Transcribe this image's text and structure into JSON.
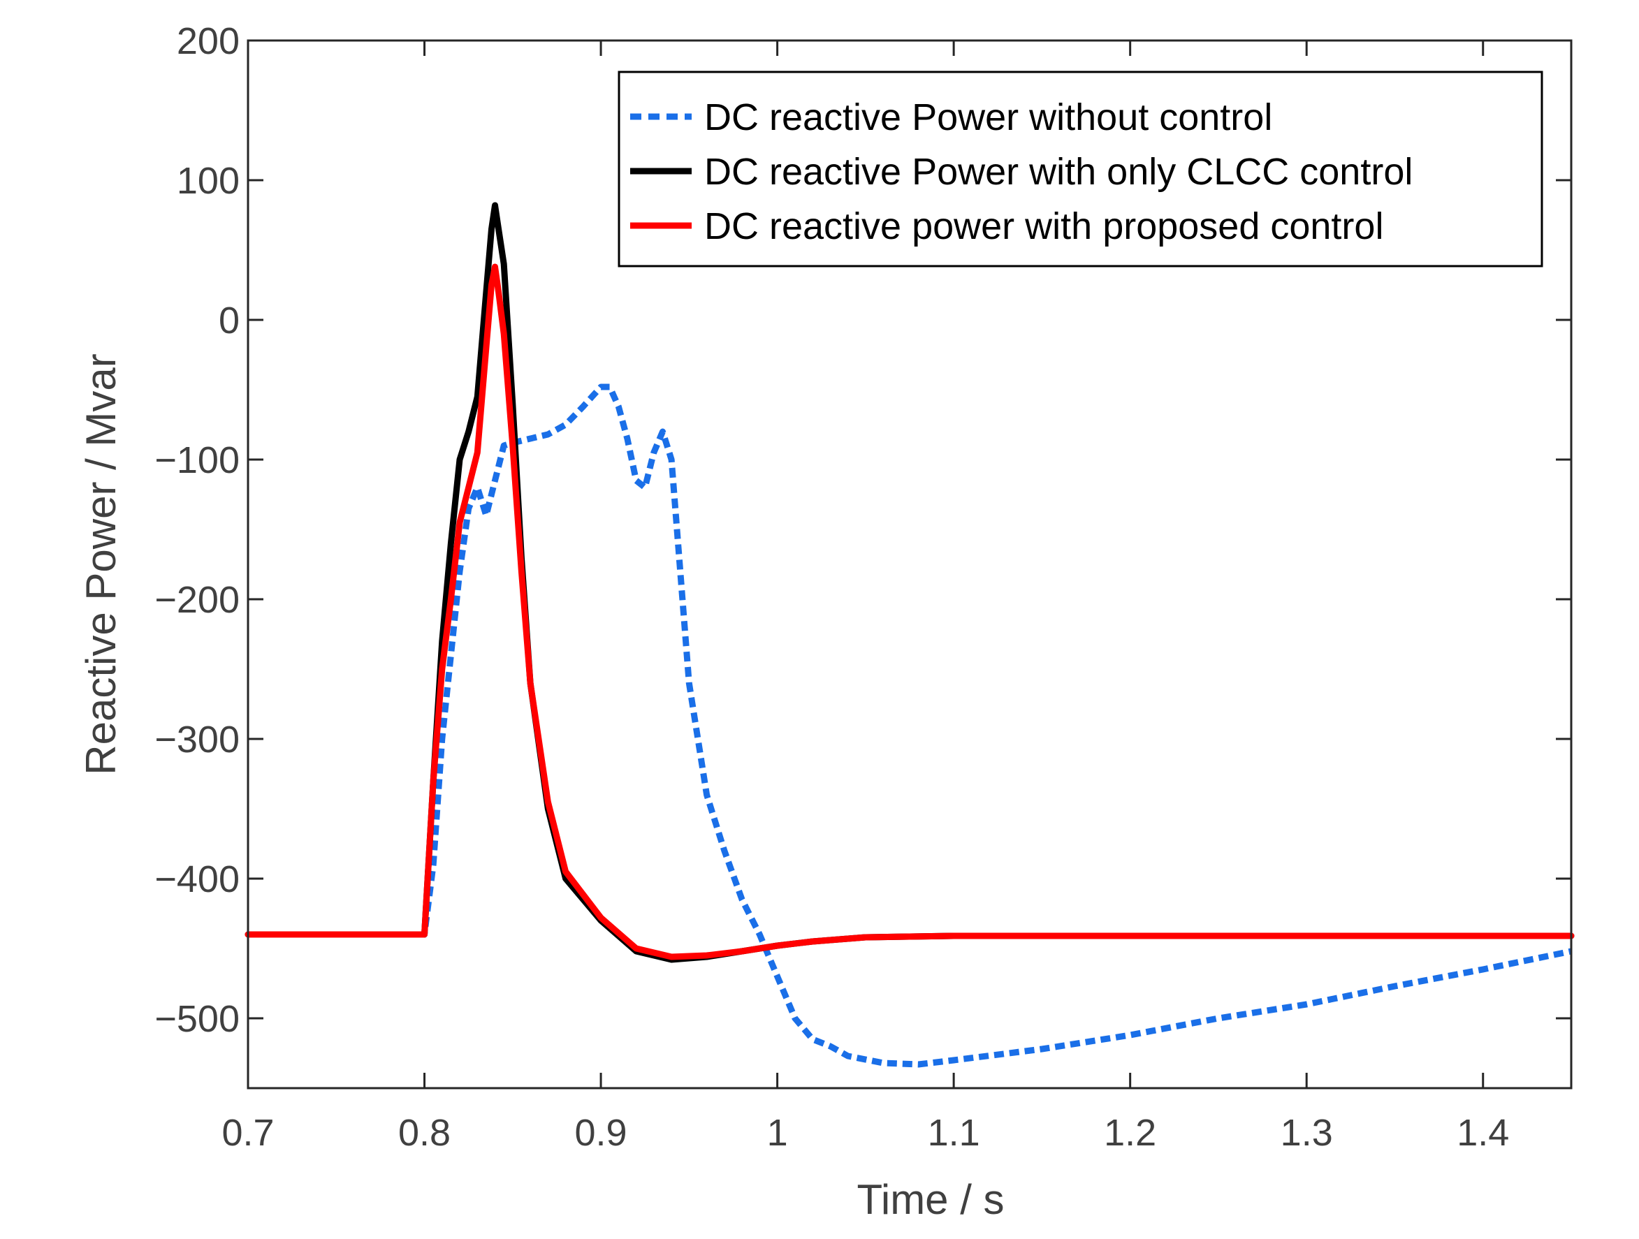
{
  "chart_data": {
    "type": "line",
    "title": "",
    "xlabel": "Time / s",
    "ylabel": "Reactive Power / Mvar",
    "xlim": [
      0.7,
      1.45
    ],
    "ylim": [
      -550,
      200
    ],
    "xticks": [
      0.7,
      0.8,
      0.9,
      1.0,
      1.1,
      1.2,
      1.3,
      1.4
    ],
    "xtick_labels": [
      "0.7",
      "0.8",
      "0.9",
      "1",
      "1.1",
      "1.2",
      "1.3",
      "1.4"
    ],
    "yticks": [
      200,
      100,
      0,
      -100,
      -200,
      -300,
      -400,
      -500
    ],
    "ytick_labels": [
      "200",
      "100",
      "0",
      "−100",
      "−200",
      "−300",
      "−400",
      "−500"
    ],
    "grid": false,
    "legend_position": "top-right",
    "series": [
      {
        "name": "DC reactive Power without control",
        "color": "#1a6fe8",
        "style": "dashed",
        "x": [
          0.7,
          0.8,
          0.805,
          0.81,
          0.815,
          0.82,
          0.825,
          0.83,
          0.835,
          0.84,
          0.845,
          0.85,
          0.86,
          0.87,
          0.88,
          0.89,
          0.895,
          0.9,
          0.905,
          0.91,
          0.915,
          0.92,
          0.925,
          0.93,
          0.935,
          0.94,
          0.945,
          0.95,
          0.96,
          0.97,
          0.98,
          0.99,
          1.0,
          1.01,
          1.02,
          1.03,
          1.04,
          1.06,
          1.08,
          1.1,
          1.15,
          1.2,
          1.25,
          1.3,
          1.35,
          1.4,
          1.45
        ],
        "values": [
          -440,
          -440,
          -390,
          -300,
          -240,
          -180,
          -135,
          -120,
          -140,
          -115,
          -90,
          -88,
          -85,
          -82,
          -75,
          -62,
          -55,
          -48,
          -48,
          -62,
          -85,
          -115,
          -120,
          -95,
          -80,
          -100,
          -180,
          -260,
          -340,
          -380,
          -415,
          -440,
          -470,
          -500,
          -515,
          -520,
          -527,
          -532,
          -533,
          -530,
          -522,
          -512,
          -500,
          -490,
          -477,
          -465,
          -452
        ]
      },
      {
        "name": "DC reactive Power with only CLCC control",
        "color": "#000000",
        "style": "solid",
        "x": [
          0.7,
          0.8,
          0.805,
          0.81,
          0.815,
          0.82,
          0.825,
          0.83,
          0.835,
          0.838,
          0.84,
          0.842,
          0.845,
          0.85,
          0.855,
          0.86,
          0.87,
          0.88,
          0.9,
          0.92,
          0.94,
          0.96,
          0.98,
          1.0,
          1.02,
          1.05,
          1.1,
          1.2,
          1.3,
          1.45
        ],
        "values": [
          -440,
          -440,
          -330,
          -230,
          -160,
          -100,
          -80,
          -55,
          20,
          65,
          82,
          65,
          40,
          -60,
          -170,
          -260,
          -350,
          -400,
          -430,
          -452,
          -458,
          -456,
          -452,
          -448,
          -445,
          -442,
          -441,
          -441,
          -441,
          -441
        ]
      },
      {
        "name": "DC reactive power with proposed control",
        "color": "#ff0000",
        "style": "solid",
        "x": [
          0.7,
          0.8,
          0.805,
          0.81,
          0.815,
          0.82,
          0.825,
          0.83,
          0.835,
          0.838,
          0.84,
          0.842,
          0.845,
          0.85,
          0.855,
          0.86,
          0.87,
          0.88,
          0.9,
          0.92,
          0.94,
          0.96,
          0.98,
          1.0,
          1.02,
          1.05,
          1.1,
          1.2,
          1.3,
          1.45
        ],
        "values": [
          -440,
          -440,
          -330,
          -250,
          -200,
          -145,
          -120,
          -95,
          -20,
          25,
          38,
          20,
          -10,
          -90,
          -180,
          -260,
          -345,
          -395,
          -428,
          -450,
          -456,
          -455,
          -452,
          -448,
          -445,
          -442,
          -441,
          -441,
          -441,
          -441
        ]
      }
    ]
  }
}
